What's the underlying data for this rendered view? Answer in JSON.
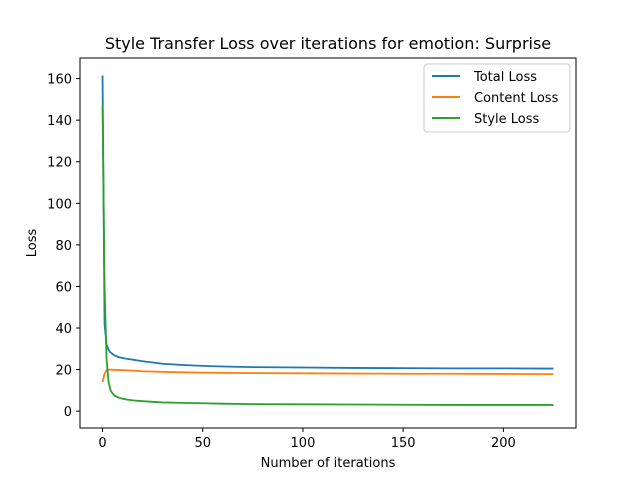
{
  "chart_data": {
    "type": "line",
    "title": "Style Transfer Loss over iterations for emotion: Surprise",
    "xlabel": "Number of iterations",
    "ylabel": "Loss",
    "xlim": [
      -11.25,
      236.25
    ],
    "ylim": [
      -8.1,
      169.9
    ],
    "x_ticks": [
      0,
      50,
      100,
      150,
      200
    ],
    "y_ticks": [
      0,
      20,
      40,
      60,
      80,
      100,
      120,
      140,
      160
    ],
    "x_tick_labels": [
      "0",
      "50",
      "100",
      "150",
      "200"
    ],
    "y_tick_labels": [
      "0",
      "20",
      "40",
      "60",
      "80",
      "100",
      "120",
      "140",
      "160"
    ],
    "legend_position": "top-right",
    "grid": false,
    "series": [
      {
        "name": "Total Loss",
        "color": "#1f77b4",
        "x": [
          0,
          1,
          2,
          3,
          4,
          5,
          6,
          8,
          10,
          12,
          15,
          20,
          25,
          30,
          40,
          50,
          60,
          75,
          100,
          125,
          150,
          175,
          200,
          220,
          225
        ],
        "y": [
          161.5,
          42,
          32,
          29.5,
          28.2,
          27.5,
          26.8,
          26.0,
          25.6,
          25.2,
          24.8,
          24.0,
          23.4,
          22.8,
          22.2,
          21.8,
          21.5,
          21.2,
          21.0,
          20.8,
          20.7,
          20.6,
          20.6,
          20.5,
          20.5
        ]
      },
      {
        "name": "Content Loss",
        "color": "#ff7f0e",
        "x": [
          0,
          1,
          2,
          3,
          5,
          10,
          15,
          20,
          30,
          40,
          50,
          75,
          100,
          125,
          150,
          175,
          200,
          225
        ],
        "y": [
          14,
          18,
          19.8,
          20,
          19.9,
          19.7,
          19.5,
          19.2,
          18.9,
          18.7,
          18.5,
          18.3,
          18.2,
          18.1,
          18.0,
          18.0,
          17.9,
          17.8
        ]
      },
      {
        "name": "Style Loss",
        "color": "#2ca02c",
        "x": [
          0,
          1,
          2,
          3,
          4,
          5,
          6,
          8,
          10,
          12,
          15,
          20,
          25,
          30,
          40,
          50,
          60,
          75,
          100,
          125,
          150,
          175,
          200,
          225
        ],
        "y": [
          147,
          60,
          25,
          14,
          10,
          8.5,
          7.5,
          6.5,
          6.0,
          5.6,
          5.2,
          4.8,
          4.5,
          4.2,
          4.0,
          3.8,
          3.6,
          3.4,
          3.3,
          3.2,
          3.1,
          3.0,
          3.0,
          3.0
        ]
      }
    ]
  }
}
